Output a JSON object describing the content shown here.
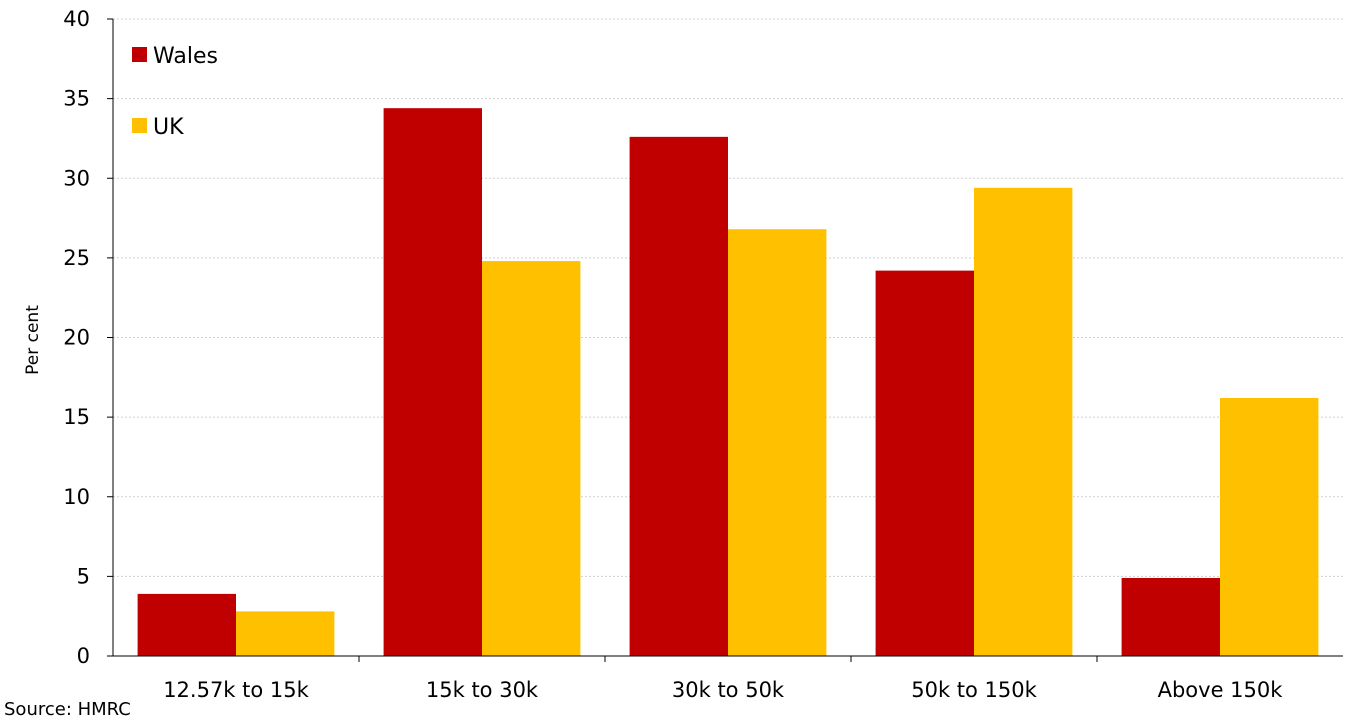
{
  "chart_data": {
    "type": "bar",
    "categories": [
      "12.57k to 15k",
      "15k to 30k",
      "30k to 50k",
      "50k to 150k",
      "Above 150k"
    ],
    "series": [
      {
        "name": "Wales",
        "color": "#c00000",
        "values": [
          3.9,
          34.4,
          32.6,
          24.2,
          4.9
        ]
      },
      {
        "name": "UK",
        "color": "#ffc000",
        "values": [
          2.8,
          24.8,
          26.8,
          29.4,
          16.2
        ]
      }
    ],
    "title": "",
    "xlabel": "",
    "ylabel": "Per cent",
    "ylim": [
      0,
      40
    ],
    "yticks": [
      0,
      5,
      10,
      15,
      20,
      25,
      30,
      35,
      40
    ],
    "grid": true,
    "legend_position": "top-left"
  },
  "source": "Source: HMRC"
}
